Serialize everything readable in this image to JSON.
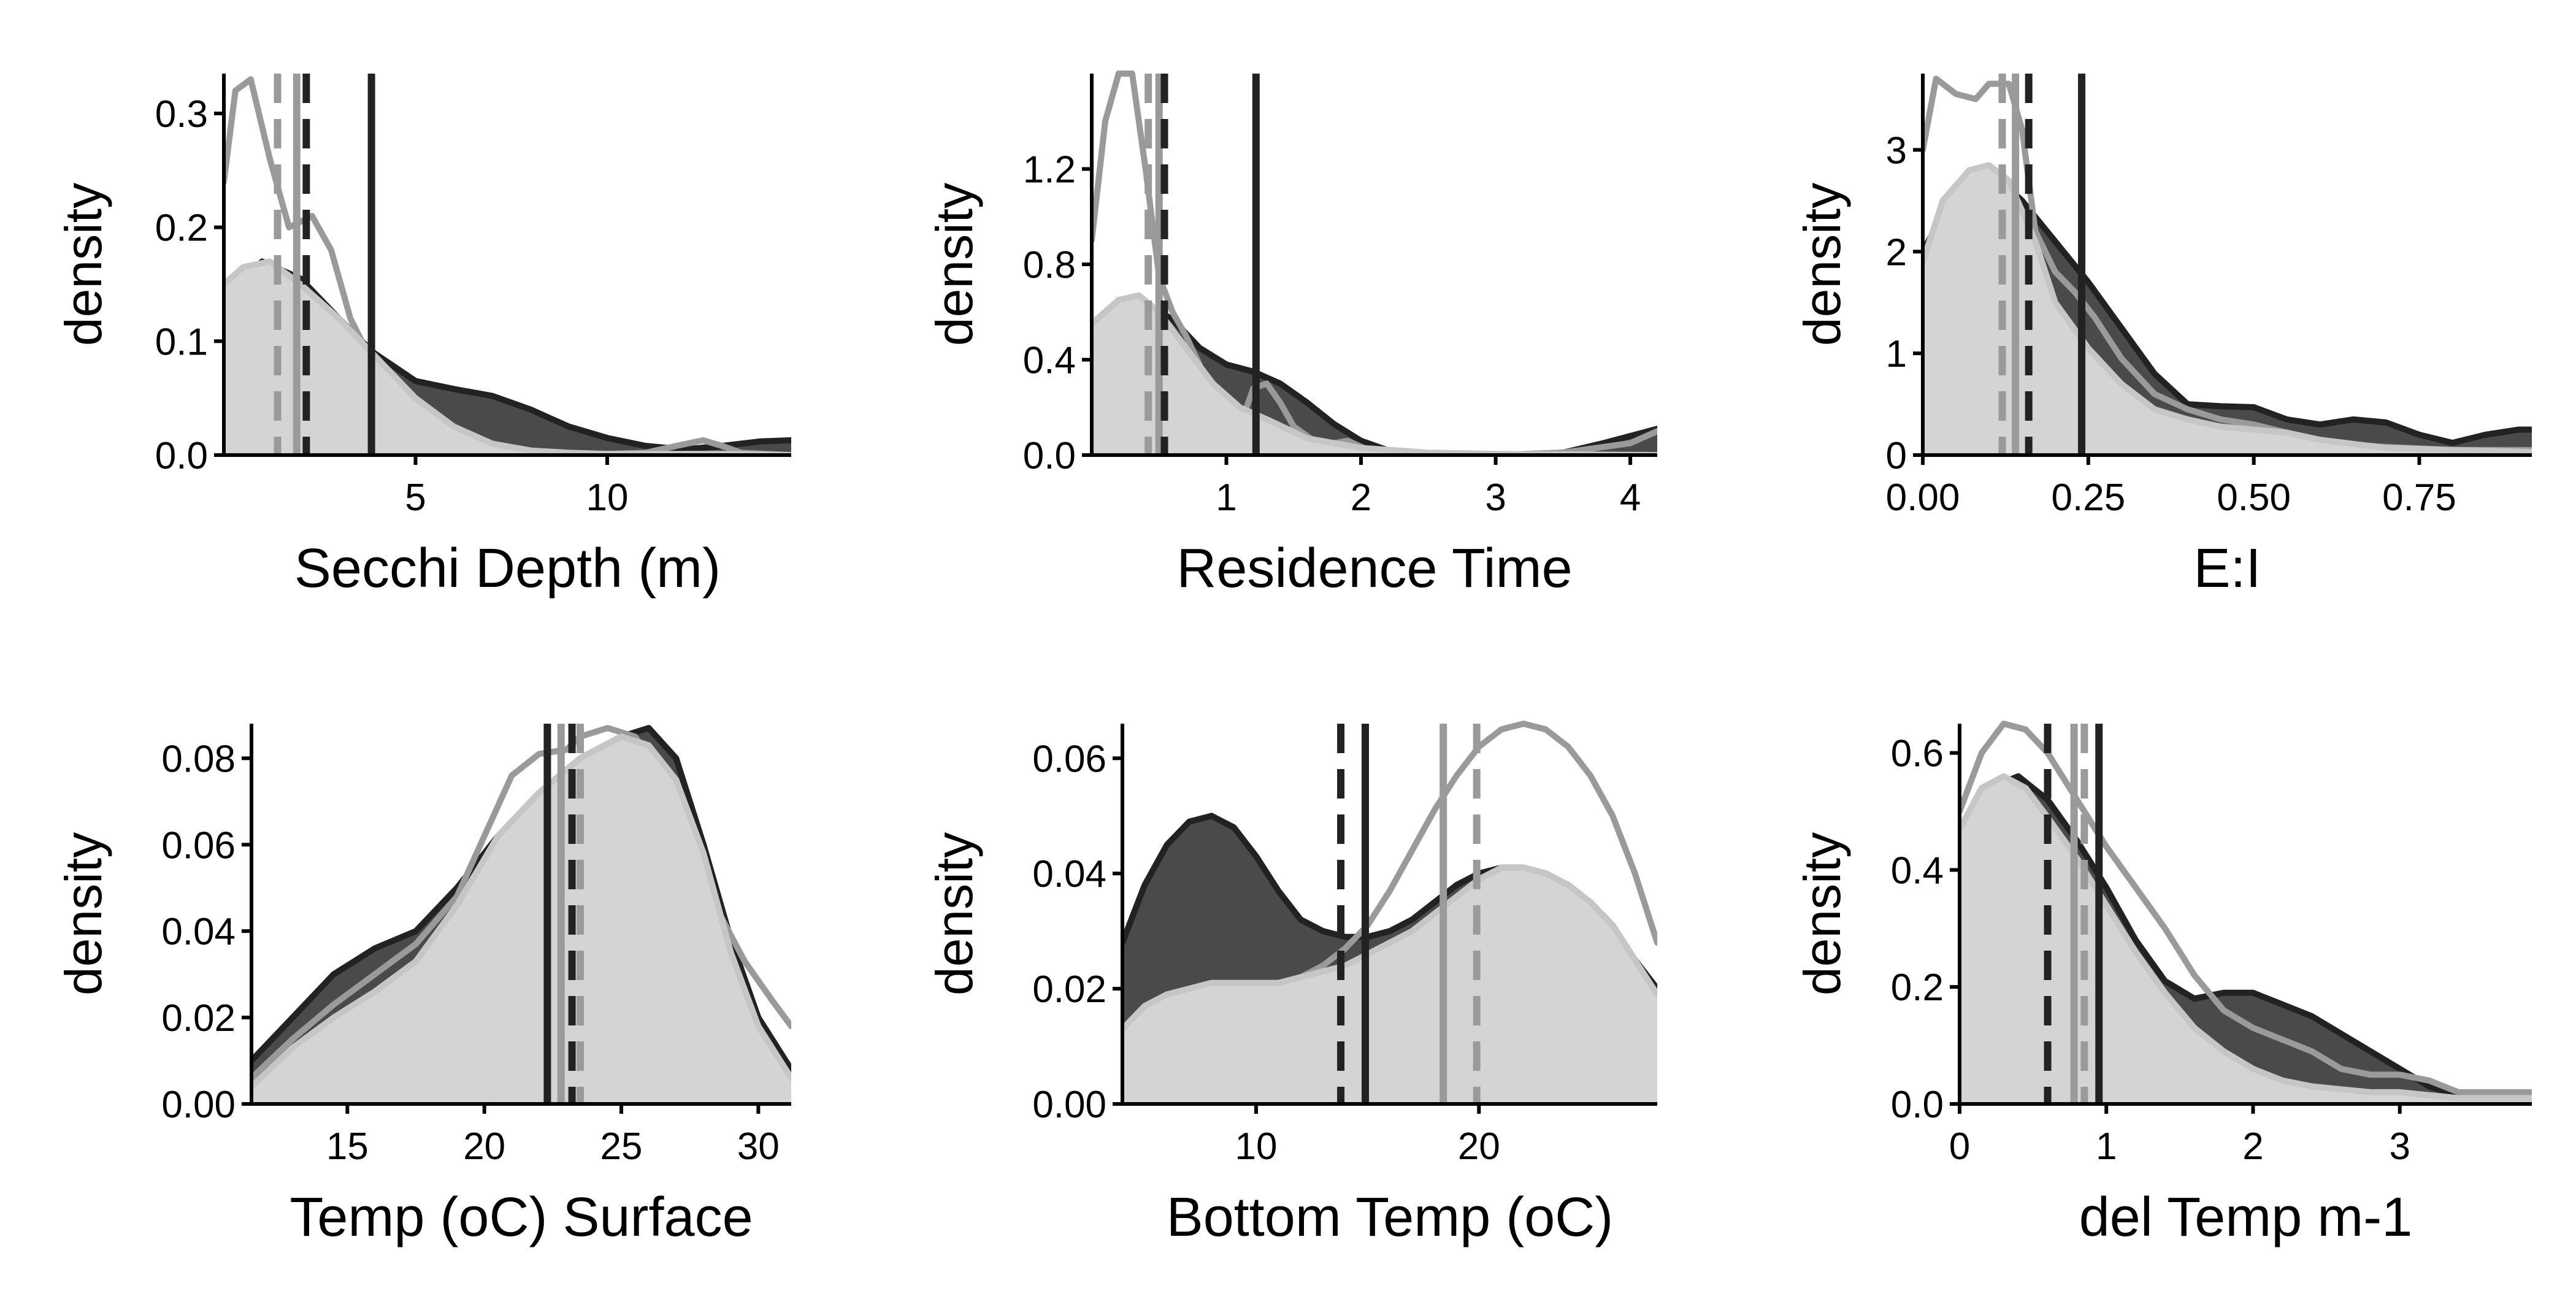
{
  "colors": {
    "group_dark": "#4a4a4a",
    "group_dark_line": "#222222",
    "group_mid_line": "#9a9a9a",
    "group_light": "#d4d4d4",
    "group_light_line": "#c6c6c6",
    "axis": "#000000"
  },
  "chart_data": [
    {
      "type": "area",
      "xlabel": "Secchi Depth (m)",
      "ylabel": "density",
      "xlim": [
        0,
        14.8
      ],
      "ylim": [
        0,
        0.335
      ],
      "xticks": [
        5,
        10
      ],
      "xtick_labels": [
        "5",
        "10"
      ],
      "yticks": [
        0,
        0.1,
        0.2,
        0.3
      ],
      "ytick_labels": [
        "0.0",
        "0.1",
        "0.2",
        "0.3"
      ],
      "series": [
        {
          "style": "dark-fill",
          "x": [
            0,
            1,
            2,
            3,
            3.9,
            5,
            6,
            7,
            8,
            9,
            10,
            11,
            12,
            13,
            14,
            14.8
          ],
          "y": [
            0.14,
            0.17,
            0.155,
            0.12,
            0.09,
            0.065,
            0.058,
            0.052,
            0.04,
            0.025,
            0.015,
            0.008,
            0.005,
            0.008,
            0.012,
            0.013
          ]
        },
        {
          "style": "mid-line",
          "x": [
            0,
            0.3,
            0.7,
            1.2,
            1.7,
            2.3,
            2.8,
            3.3,
            3.9,
            4.5,
            5,
            5.5,
            6,
            6.5,
            7,
            8,
            9,
            10,
            11,
            11.8,
            12.5,
            13,
            13.5,
            14.8
          ],
          "y": [
            0.24,
            0.32,
            0.33,
            0.26,
            0.2,
            0.21,
            0.18,
            0.12,
            0.08,
            0.055,
            0.03,
            0.012,
            0.005,
            0.012,
            0.005,
            0.002,
            0.001,
            0.001,
            0.002,
            0.008,
            0.013,
            0.008,
            0.002,
            0
          ]
        },
        {
          "style": "light-fill",
          "x": [
            0,
            0.5,
            1.2,
            2,
            3,
            4,
            5,
            6,
            7,
            8,
            9,
            10,
            11,
            12,
            13,
            14.8
          ],
          "y": [
            0.15,
            0.165,
            0.17,
            0.15,
            0.12,
            0.085,
            0.05,
            0.025,
            0.01,
            0.004,
            0.002,
            0.001,
            0.001,
            0.001,
            0.001,
            0
          ]
        }
      ],
      "vlines": [
        {
          "x": 1.4,
          "style": "mid-dashed"
        },
        {
          "x": 1.9,
          "style": "mid-solid"
        },
        {
          "x": 2.15,
          "style": "dark-dashed"
        },
        {
          "x": 3.85,
          "style": "dark-solid"
        }
      ]
    },
    {
      "type": "area",
      "xlabel": "Residence Time",
      "ylabel": "density",
      "xlim": [
        0,
        4.2
      ],
      "ylim": [
        0,
        1.6
      ],
      "xticks": [
        1,
        2,
        3,
        4
      ],
      "xtick_labels": [
        "1",
        "2",
        "3",
        "4"
      ],
      "yticks": [
        0,
        0.4,
        0.8,
        1.2
      ],
      "ytick_labels": [
        "0.0",
        "0.4",
        "0.8",
        "1.2"
      ],
      "series": [
        {
          "style": "dark-fill",
          "x": [
            0,
            0.2,
            0.4,
            0.6,
            0.8,
            1.0,
            1.2,
            1.4,
            1.6,
            1.8,
            2.0,
            2.2,
            2.5,
            3.0,
            3.5,
            3.8,
            4.0,
            4.2
          ],
          "y": [
            0.55,
            0.65,
            0.63,
            0.57,
            0.45,
            0.38,
            0.35,
            0.3,
            0.22,
            0.13,
            0.06,
            0.02,
            0.005,
            0,
            0.01,
            0.05,
            0.08,
            0.11
          ]
        },
        {
          "style": "mid-line",
          "x": [
            0,
            0.1,
            0.2,
            0.3,
            0.4,
            0.5,
            0.6,
            0.7,
            0.8,
            0.9,
            1.0,
            1.1,
            1.2,
            1.3,
            1.4,
            1.5,
            1.7,
            1.9,
            2.1,
            2.5,
            3.0,
            3.5,
            4.0,
            4.2
          ],
          "y": [
            0.9,
            1.4,
            1.6,
            1.6,
            1.2,
            0.75,
            0.6,
            0.5,
            0.38,
            0.2,
            0.07,
            0.12,
            0.28,
            0.3,
            0.22,
            0.12,
            0.04,
            0.06,
            0.01,
            0,
            0,
            0.01,
            0.05,
            0.1
          ]
        },
        {
          "style": "light-fill",
          "x": [
            0,
            0.2,
            0.35,
            0.5,
            0.7,
            0.9,
            1.1,
            1.3,
            1.6,
            2.0,
            2.5,
            3.0,
            4.2
          ],
          "y": [
            0.55,
            0.65,
            0.67,
            0.6,
            0.45,
            0.3,
            0.2,
            0.15,
            0.07,
            0.03,
            0.01,
            0.005,
            0
          ]
        }
      ],
      "vlines": [
        {
          "x": 0.42,
          "style": "mid-dashed"
        },
        {
          "x": 0.5,
          "style": "mid-solid"
        },
        {
          "x": 0.54,
          "style": "dark-dashed"
        },
        {
          "x": 1.22,
          "style": "dark-solid"
        }
      ]
    },
    {
      "type": "area",
      "xlabel": "E:I",
      "ylabel": "density",
      "xlim": [
        0,
        0.92
      ],
      "ylim": [
        0,
        3.75
      ],
      "xticks": [
        0,
        0.25,
        0.5,
        0.75
      ],
      "xtick_labels": [
        "0.00",
        "0.25",
        "0.50",
        "0.75"
      ],
      "yticks": [
        0,
        1,
        2,
        3
      ],
      "ytick_labels": [
        "0",
        "1",
        "2",
        "3"
      ],
      "series": [
        {
          "style": "dark-fill",
          "x": [
            0,
            0.05,
            0.1,
            0.15,
            0.2,
            0.25,
            0.3,
            0.35,
            0.4,
            0.45,
            0.5,
            0.55,
            0.6,
            0.65,
            0.7,
            0.75,
            0.8,
            0.85,
            0.9,
            0.92
          ],
          "y": [
            2.0,
            2.6,
            2.8,
            2.5,
            2.1,
            1.7,
            1.25,
            0.8,
            0.5,
            0.48,
            0.47,
            0.35,
            0.3,
            0.35,
            0.32,
            0.2,
            0.12,
            0.2,
            0.25,
            0.25
          ]
        },
        {
          "style": "mid-line",
          "x": [
            0,
            0.02,
            0.05,
            0.08,
            0.1,
            0.13,
            0.15,
            0.17,
            0.2,
            0.23,
            0.26,
            0.3,
            0.35,
            0.4,
            0.45,
            0.5,
            0.55,
            0.6,
            0.65,
            0.7,
            0.8,
            0.9,
            0.92
          ],
          "y": [
            3.0,
            3.7,
            3.55,
            3.5,
            3.65,
            3.65,
            3.2,
            2.2,
            1.8,
            1.6,
            1.35,
            0.95,
            0.6,
            0.45,
            0.35,
            0.3,
            0.22,
            0.12,
            0.1,
            0.08,
            0.05,
            0.05,
            0.05
          ]
        },
        {
          "style": "light-fill",
          "x": [
            0,
            0.03,
            0.07,
            0.1,
            0.13,
            0.17,
            0.2,
            0.25,
            0.3,
            0.35,
            0.4,
            0.45,
            0.5,
            0.55,
            0.6,
            0.7,
            0.8,
            0.92
          ],
          "y": [
            1.9,
            2.5,
            2.8,
            2.85,
            2.7,
            2.1,
            1.5,
            1.05,
            0.7,
            0.45,
            0.35,
            0.28,
            0.25,
            0.22,
            0.15,
            0.07,
            0.05,
            0.03
          ]
        }
      ],
      "vlines": [
        {
          "x": 0.12,
          "style": "mid-dashed"
        },
        {
          "x": 0.14,
          "style": "mid-solid"
        },
        {
          "x": 0.16,
          "style": "dark-dashed"
        },
        {
          "x": 0.24,
          "style": "dark-solid"
        }
      ]
    },
    {
      "type": "area",
      "xlabel": "Temp (oC) Surface",
      "ylabel": "density",
      "xlim": [
        11.5,
        31.2
      ],
      "ylim": [
        0,
        0.088
      ],
      "xticks": [
        15,
        20,
        25,
        30
      ],
      "xtick_labels": [
        "15",
        "20",
        "25",
        "30"
      ],
      "yticks": [
        0,
        0.02,
        0.04,
        0.06,
        0.08
      ],
      "ytick_labels": [
        "0.00",
        "0.02",
        "0.04",
        "0.06",
        "0.08"
      ],
      "series": [
        {
          "style": "dark-fill",
          "x": [
            11.5,
            13,
            14.5,
            16,
            17.5,
            19,
            20.5,
            22,
            23.5,
            25,
            26,
            27,
            28,
            29,
            30,
            31.2
          ],
          "y": [
            0.01,
            0.02,
            0.03,
            0.036,
            0.04,
            0.05,
            0.062,
            0.072,
            0.08,
            0.085,
            0.087,
            0.08,
            0.06,
            0.038,
            0.02,
            0.008
          ]
        },
        {
          "style": "mid-line",
          "x": [
            11.5,
            13,
            14.5,
            16,
            17.5,
            19,
            20,
            21,
            22,
            23,
            23.5,
            24.5,
            25.5,
            26.5,
            27.5,
            28.5,
            29.5,
            30.5,
            31.2
          ],
          "y": [
            0.006,
            0.015,
            0.023,
            0.03,
            0.037,
            0.048,
            0.062,
            0.076,
            0.081,
            0.082,
            0.085,
            0.087,
            0.085,
            0.076,
            0.06,
            0.045,
            0.033,
            0.024,
            0.018
          ]
        },
        {
          "style": "light-fill",
          "x": [
            11.5,
            13,
            14.5,
            16,
            17.5,
            19,
            20.5,
            22,
            23.5,
            25,
            26,
            27,
            28,
            29,
            30,
            31.2
          ],
          "y": [
            0.004,
            0.013,
            0.02,
            0.026,
            0.033,
            0.046,
            0.062,
            0.072,
            0.08,
            0.085,
            0.083,
            0.075,
            0.058,
            0.035,
            0.018,
            0.006
          ]
        }
      ],
      "vlines": [
        {
          "x": 22.3,
          "style": "dark-solid"
        },
        {
          "x": 22.8,
          "style": "mid-solid"
        },
        {
          "x": 23.2,
          "style": "dark-dashed"
        },
        {
          "x": 23.5,
          "style": "mid-dashed"
        }
      ]
    },
    {
      "type": "area",
      "xlabel": "Bottom Temp (oC)",
      "ylabel": "density",
      "xlim": [
        4,
        28
      ],
      "ylim": [
        0,
        0.066
      ],
      "xticks": [
        10,
        20
      ],
      "xtick_labels": [
        "10",
        "20"
      ],
      "yticks": [
        0,
        0.02,
        0.04,
        0.06
      ],
      "ytick_labels": [
        "0.00",
        "0.02",
        "0.04",
        "0.06"
      ],
      "series": [
        {
          "style": "dark-fill",
          "x": [
            4,
            5,
            6,
            7,
            8,
            9,
            10,
            11,
            12,
            13,
            14,
            15,
            16,
            17,
            18,
            19,
            20,
            21,
            22,
            23,
            24,
            25,
            26,
            27,
            28
          ],
          "y": [
            0.028,
            0.038,
            0.045,
            0.049,
            0.05,
            0.048,
            0.043,
            0.037,
            0.032,
            0.03,
            0.029,
            0.029,
            0.03,
            0.032,
            0.035,
            0.038,
            0.04,
            0.041,
            0.041,
            0.04,
            0.038,
            0.035,
            0.031,
            0.025,
            0.02
          ]
        },
        {
          "style": "mid-line",
          "x": [
            4,
            5,
            6,
            7,
            8,
            9,
            10,
            11,
            12,
            13,
            14,
            15,
            16,
            17,
            18,
            19,
            20,
            21,
            22,
            23,
            24,
            25,
            26,
            27,
            28
          ],
          "y": [
            0.013,
            0.017,
            0.019,
            0.02,
            0.021,
            0.021,
            0.021,
            0.021,
            0.022,
            0.024,
            0.027,
            0.031,
            0.037,
            0.044,
            0.051,
            0.057,
            0.062,
            0.065,
            0.066,
            0.065,
            0.062,
            0.057,
            0.05,
            0.04,
            0.028
          ]
        },
        {
          "style": "light-fill",
          "x": [
            4,
            5,
            6,
            7,
            8,
            9,
            10,
            11,
            12,
            13,
            14,
            15,
            16,
            17,
            18,
            19,
            20,
            21,
            22,
            23,
            24,
            25,
            26,
            27,
            28
          ],
          "y": [
            0.013,
            0.017,
            0.019,
            0.02,
            0.021,
            0.021,
            0.021,
            0.021,
            0.022,
            0.023,
            0.024,
            0.026,
            0.028,
            0.03,
            0.033,
            0.036,
            0.039,
            0.041,
            0.041,
            0.04,
            0.038,
            0.035,
            0.031,
            0.025,
            0.019
          ]
        }
      ],
      "vlines": [
        {
          "x": 13.8,
          "style": "dark-dashed"
        },
        {
          "x": 14.9,
          "style": "dark-solid"
        },
        {
          "x": 18.4,
          "style": "mid-solid"
        },
        {
          "x": 19.9,
          "style": "mid-dashed"
        }
      ]
    },
    {
      "type": "area",
      "xlabel": "del Temp m-1",
      "ylabel": "density",
      "xlim": [
        0,
        3.9
      ],
      "ylim": [
        0,
        0.65
      ],
      "xticks": [
        0,
        1,
        2,
        3
      ],
      "xtick_labels": [
        "0",
        "1",
        "2",
        "3"
      ],
      "yticks": [
        0,
        0.2,
        0.4,
        0.6
      ],
      "ytick_labels": [
        "0.0",
        "0.2",
        "0.4",
        "0.6"
      ],
      "series": [
        {
          "style": "dark-fill",
          "x": [
            0,
            0.2,
            0.4,
            0.6,
            0.8,
            1.0,
            1.2,
            1.4,
            1.6,
            1.8,
            2.0,
            2.2,
            2.4,
            2.6,
            2.8,
            3.0,
            3.2,
            3.4,
            3.6,
            3.9
          ],
          "y": [
            0.45,
            0.54,
            0.56,
            0.52,
            0.45,
            0.37,
            0.28,
            0.21,
            0.18,
            0.19,
            0.19,
            0.17,
            0.15,
            0.12,
            0.09,
            0.06,
            0.03,
            0.015,
            0.01,
            0.02
          ]
        },
        {
          "style": "mid-line",
          "x": [
            0,
            0.15,
            0.3,
            0.45,
            0.6,
            0.8,
            1.0,
            1.2,
            1.4,
            1.6,
            1.8,
            2.0,
            2.2,
            2.4,
            2.6,
            2.8,
            3.0,
            3.2,
            3.4,
            3.6,
            3.9
          ],
          "y": [
            0.5,
            0.6,
            0.65,
            0.64,
            0.6,
            0.52,
            0.44,
            0.37,
            0.3,
            0.22,
            0.16,
            0.13,
            0.11,
            0.09,
            0.06,
            0.05,
            0.05,
            0.04,
            0.02,
            0.02,
            0.02
          ]
        },
        {
          "style": "light-fill",
          "x": [
            0,
            0.15,
            0.3,
            0.45,
            0.6,
            0.8,
            1.0,
            1.2,
            1.4,
            1.6,
            1.8,
            2.0,
            2.2,
            2.4,
            2.6,
            2.8,
            3.0,
            3.2,
            3.4,
            3.6,
            3.9
          ],
          "y": [
            0.47,
            0.54,
            0.56,
            0.54,
            0.49,
            0.42,
            0.34,
            0.26,
            0.19,
            0.13,
            0.09,
            0.06,
            0.04,
            0.03,
            0.025,
            0.02,
            0.02,
            0.015,
            0.01,
            0.01,
            0.01
          ]
        }
      ],
      "vlines": [
        {
          "x": 0.6,
          "style": "dark-dashed"
        },
        {
          "x": 0.78,
          "style": "mid-solid"
        },
        {
          "x": 0.85,
          "style": "mid-dashed"
        },
        {
          "x": 0.95,
          "style": "dark-solid"
        }
      ]
    }
  ]
}
